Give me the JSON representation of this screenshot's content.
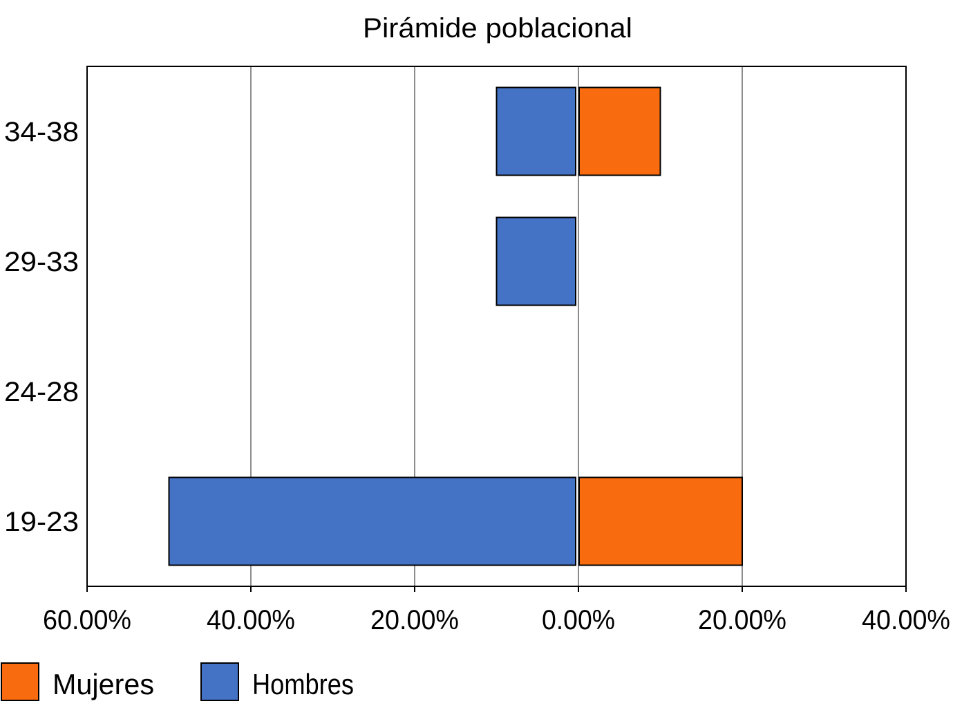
{
  "chart_data": {
    "type": "bar",
    "orientation": "horizontal",
    "title": "Pirámide poblacional",
    "categories": [
      "34-38",
      "29-33",
      "24-28",
      "19-23"
    ],
    "series": [
      {
        "name": "Mujeres",
        "color": "#f86b0f",
        "values": [
          10,
          0,
          0,
          20
        ]
      },
      {
        "name": "Hombres",
        "color": "#4472c4",
        "values": [
          -10,
          -10,
          0,
          -50
        ]
      }
    ],
    "xlim": [
      -60,
      40
    ],
    "xticks": [
      -60,
      -40,
      -20,
      0,
      20,
      40
    ],
    "xtick_labels": [
      "60.00%",
      "40.00%",
      "20.00%",
      "0.00%",
      "20.00%",
      "40.00%"
    ],
    "xlabel": "",
    "ylabel": "",
    "grid": "vertical",
    "legend": {
      "placement": "bottom-left",
      "items": [
        "Mujeres",
        "Hombres"
      ]
    }
  }
}
